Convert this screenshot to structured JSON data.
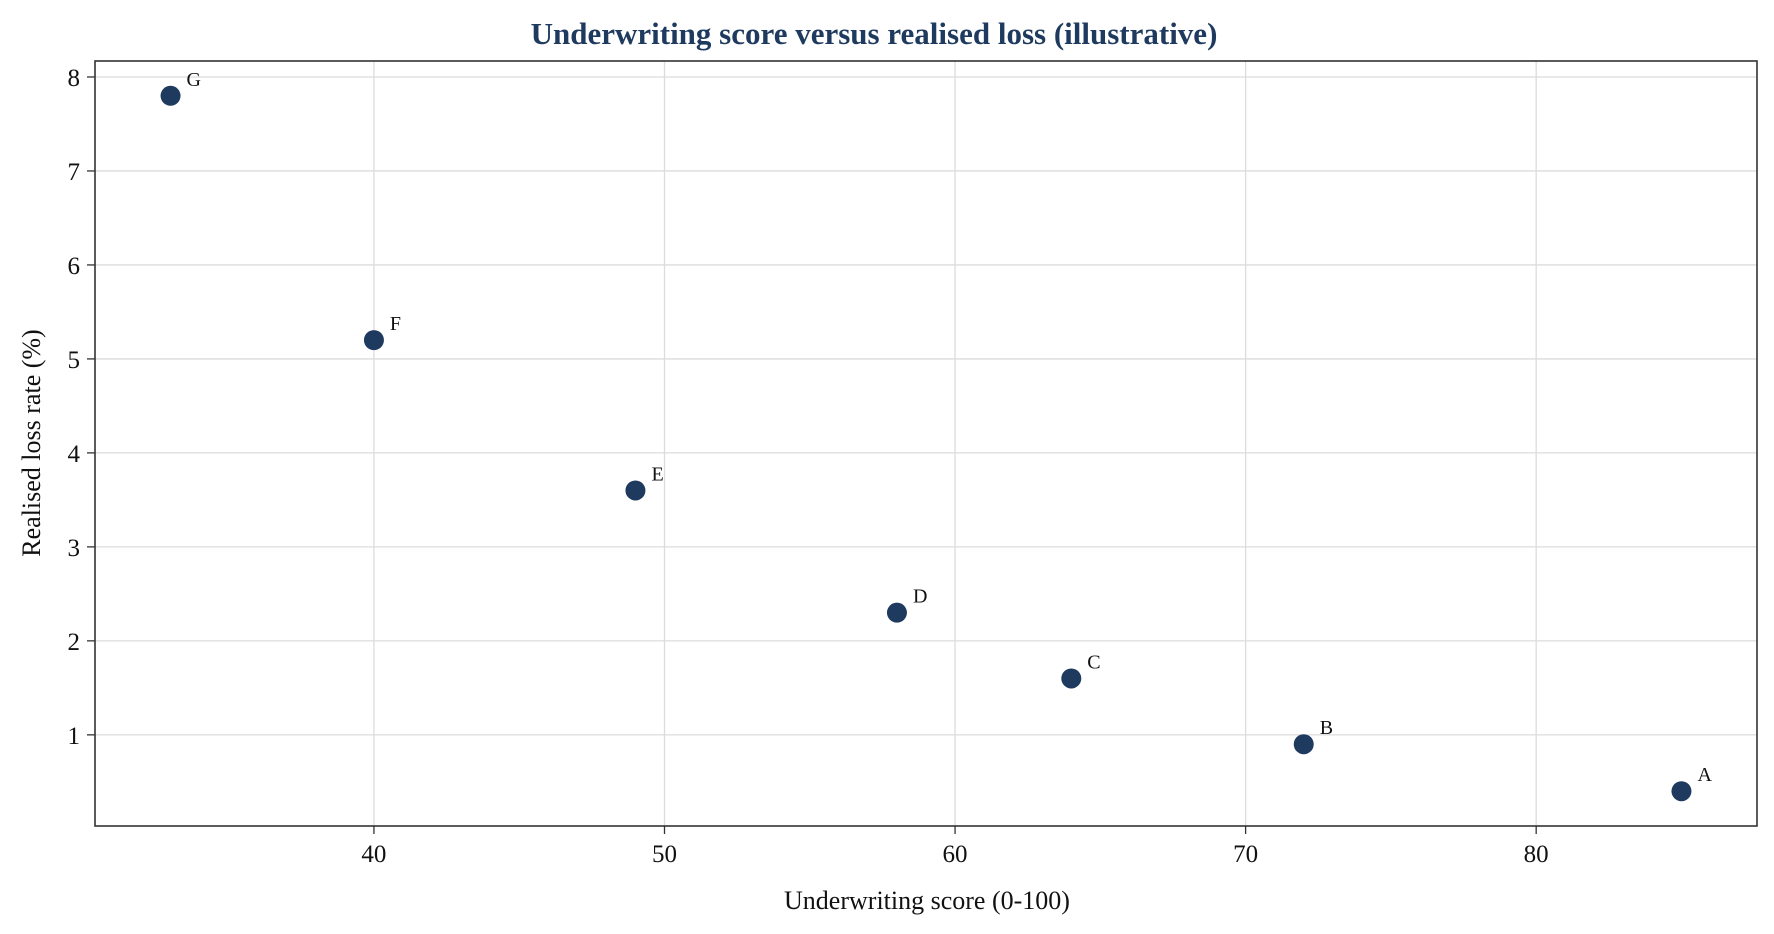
{
  "chart_data": {
    "type": "scatter",
    "title": "Underwriting score versus realised loss (illustrative)",
    "xlabel": "Underwriting score (0-100)",
    "ylabel": "Realised loss rate (%)",
    "xlim": [
      30.4,
      87.6
    ],
    "ylim": [
      0.03,
      8.17
    ],
    "x_ticks": [
      40,
      50,
      60,
      70,
      80
    ],
    "y_ticks": [
      1,
      2,
      3,
      4,
      5,
      6,
      7,
      8
    ],
    "grid": true,
    "points": [
      {
        "label": "A",
        "x": 85,
        "y": 0.4
      },
      {
        "label": "B",
        "x": 72,
        "y": 0.9
      },
      {
        "label": "C",
        "x": 64,
        "y": 1.6
      },
      {
        "label": "D",
        "x": 58,
        "y": 2.3
      },
      {
        "label": "E",
        "x": 49,
        "y": 3.6
      },
      {
        "label": "F",
        "x": 40,
        "y": 5.2
      },
      {
        "label": "G",
        "x": 33,
        "y": 7.8
      }
    ],
    "colors": {
      "marker": "#1f3a5f",
      "title": "#1f3a5f"
    }
  }
}
